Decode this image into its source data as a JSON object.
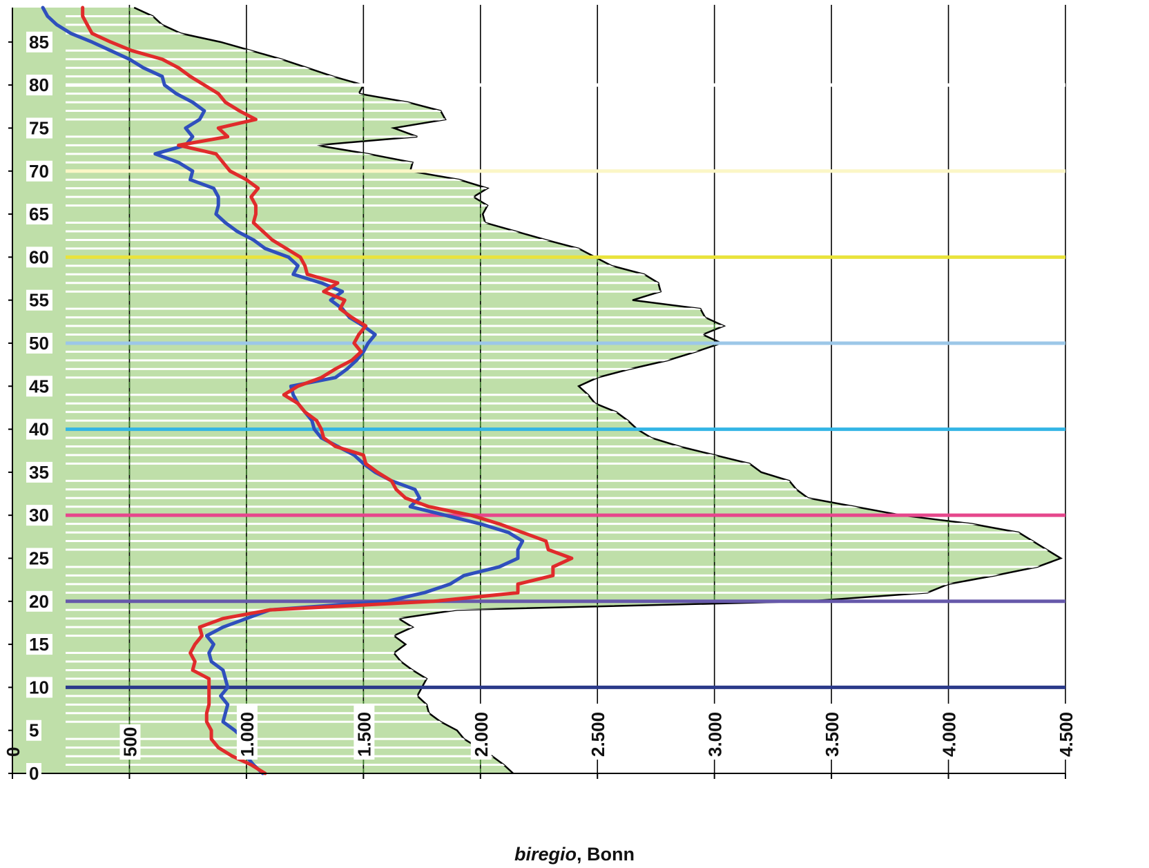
{
  "chart_data": {
    "type": "area",
    "title": "",
    "xlabel_italic": "biregio",
    "xlabel_rest": ", Bonn",
    "xlim": [
      0,
      4500
    ],
    "ylim": [
      0,
      89
    ],
    "x_ticks": [
      0,
      500,
      1000,
      1500,
      2000,
      2500,
      3000,
      3500,
      4000,
      4500
    ],
    "x_tick_labels": [
      "0",
      "500",
      "1.000",
      "1.500",
      "2.000",
      "2.500",
      "3.000",
      "3.500",
      "4.000",
      "4.500"
    ],
    "y_ticks": [
      0,
      5,
      10,
      15,
      20,
      25,
      30,
      35,
      40,
      45,
      50,
      55,
      60,
      65,
      70,
      75,
      80,
      85
    ],
    "y_tick_labels": [
      "0",
      "5",
      "10",
      "15",
      "20",
      "25",
      "30",
      "35",
      "40",
      "45",
      "50",
      "55",
      "60",
      "65",
      "70",
      "75",
      "80",
      "85"
    ],
    "grid": "vertical",
    "area_series": {
      "color": "#bfdfa9",
      "outline": "#000000",
      "points": [
        [
          2140,
          0
        ],
        [
          2100,
          1
        ],
        [
          2050,
          2
        ],
        [
          1990,
          3
        ],
        [
          1930,
          4
        ],
        [
          1900,
          5
        ],
        [
          1830,
          6
        ],
        [
          1780,
          7
        ],
        [
          1770,
          8
        ],
        [
          1730,
          9
        ],
        [
          1750,
          10
        ],
        [
          1770,
          11
        ],
        [
          1710,
          12
        ],
        [
          1660,
          13
        ],
        [
          1630,
          14
        ],
        [
          1680,
          15
        ],
        [
          1630,
          16
        ],
        [
          1710,
          17
        ],
        [
          1650,
          18
        ],
        [
          1900,
          19
        ],
        [
          3400,
          20
        ],
        [
          3910,
          21
        ],
        [
          4000,
          22
        ],
        [
          4200,
          23
        ],
        [
          4380,
          24
        ],
        [
          4480,
          25
        ],
        [
          4420,
          26
        ],
        [
          4360,
          27
        ],
        [
          4300,
          28
        ],
        [
          4100,
          29
        ],
        [
          3800,
          30
        ],
        [
          3600,
          31
        ],
        [
          3400,
          32
        ],
        [
          3350,
          33
        ],
        [
          3320,
          34
        ],
        [
          3200,
          35
        ],
        [
          3150,
          36
        ],
        [
          3000,
          37
        ],
        [
          2850,
          38
        ],
        [
          2730,
          39
        ],
        [
          2670,
          40
        ],
        [
          2630,
          41
        ],
        [
          2580,
          42
        ],
        [
          2490,
          43
        ],
        [
          2460,
          44
        ],
        [
          2420,
          45
        ],
        [
          2500,
          46
        ],
        [
          2640,
          47
        ],
        [
          2800,
          48
        ],
        [
          2920,
          49
        ],
        [
          3030,
          50
        ],
        [
          2950,
          51
        ],
        [
          3040,
          52
        ],
        [
          2960,
          53
        ],
        [
          2940,
          54
        ],
        [
          2650,
          55
        ],
        [
          2770,
          56
        ],
        [
          2760,
          57
        ],
        [
          2700,
          58
        ],
        [
          2560,
          59
        ],
        [
          2490,
          60
        ],
        [
          2420,
          61
        ],
        [
          2280,
          62
        ],
        [
          2150,
          63
        ],
        [
          2020,
          64
        ],
        [
          2010,
          65
        ],
        [
          2030,
          66
        ],
        [
          1970,
          67
        ],
        [
          2030,
          68
        ],
        [
          1910,
          69
        ],
        [
          1700,
          70
        ],
        [
          1710,
          71
        ],
        [
          1520,
          72
        ],
        [
          1300,
          73
        ],
        [
          1730,
          74
        ],
        [
          1630,
          75
        ],
        [
          1850,
          76
        ],
        [
          1830,
          77
        ],
        [
          1690,
          78
        ],
        [
          1480,
          79
        ],
        [
          1500,
          80
        ],
        [
          1370,
          81
        ],
        [
          1260,
          82
        ],
        [
          1150,
          83
        ],
        [
          1020,
          84
        ],
        [
          890,
          85
        ],
        [
          720,
          86
        ],
        [
          640,
          87
        ],
        [
          600,
          88
        ],
        [
          520,
          89
        ]
      ]
    },
    "series": [
      {
        "color": "#2f4fbd",
        "points": [
          [
            1070,
            0
          ],
          [
            1030,
            1
          ],
          [
            1000,
            2
          ],
          [
            990,
            3
          ],
          [
            990,
            4
          ],
          [
            950,
            5
          ],
          [
            900,
            6
          ],
          [
            910,
            7
          ],
          [
            920,
            8
          ],
          [
            890,
            9
          ],
          [
            920,
            10
          ],
          [
            910,
            11
          ],
          [
            900,
            12
          ],
          [
            850,
            13
          ],
          [
            840,
            14
          ],
          [
            860,
            15
          ],
          [
            830,
            16
          ],
          [
            900,
            17
          ],
          [
            1000,
            18
          ],
          [
            1100,
            19
          ],
          [
            1600,
            20
          ],
          [
            1760,
            21
          ],
          [
            1870,
            22
          ],
          [
            1930,
            23
          ],
          [
            2080,
            24
          ],
          [
            2160,
            25
          ],
          [
            2160,
            26
          ],
          [
            2180,
            27
          ],
          [
            2120,
            28
          ],
          [
            2000,
            29
          ],
          [
            1850,
            30
          ],
          [
            1700,
            31
          ],
          [
            1740,
            32
          ],
          [
            1720,
            33
          ],
          [
            1620,
            34
          ],
          [
            1550,
            35
          ],
          [
            1500,
            36
          ],
          [
            1460,
            37
          ],
          [
            1390,
            38
          ],
          [
            1320,
            39
          ],
          [
            1290,
            40
          ],
          [
            1280,
            41
          ],
          [
            1250,
            42
          ],
          [
            1220,
            43
          ],
          [
            1200,
            44
          ],
          [
            1190,
            45
          ],
          [
            1380,
            46
          ],
          [
            1430,
            47
          ],
          [
            1470,
            48
          ],
          [
            1500,
            49
          ],
          [
            1520,
            50
          ],
          [
            1550,
            51
          ],
          [
            1500,
            52
          ],
          [
            1440,
            53
          ],
          [
            1410,
            54
          ],
          [
            1360,
            55
          ],
          [
            1410,
            56
          ],
          [
            1320,
            57
          ],
          [
            1200,
            58
          ],
          [
            1220,
            59
          ],
          [
            1180,
            60
          ],
          [
            1080,
            61
          ],
          [
            1030,
            62
          ],
          [
            960,
            63
          ],
          [
            910,
            64
          ],
          [
            870,
            65
          ],
          [
            880,
            66
          ],
          [
            880,
            67
          ],
          [
            860,
            68
          ],
          [
            760,
            69
          ],
          [
            770,
            70
          ],
          [
            710,
            71
          ],
          [
            610,
            72
          ],
          [
            740,
            73
          ],
          [
            770,
            74
          ],
          [
            740,
            75
          ],
          [
            800,
            76
          ],
          [
            820,
            77
          ],
          [
            770,
            78
          ],
          [
            700,
            79
          ],
          [
            650,
            80
          ],
          [
            640,
            81
          ],
          [
            560,
            82
          ],
          [
            500,
            83
          ],
          [
            420,
            84
          ],
          [
            340,
            85
          ],
          [
            250,
            86
          ],
          [
            190,
            87
          ],
          [
            150,
            88
          ],
          [
            130,
            89
          ]
        ]
      },
      {
        "color": "#e02b2b",
        "points": [
          [
            1080,
            0
          ],
          [
            1020,
            1
          ],
          [
            940,
            2
          ],
          [
            880,
            3
          ],
          [
            850,
            4
          ],
          [
            850,
            5
          ],
          [
            830,
            6
          ],
          [
            830,
            7
          ],
          [
            840,
            8
          ],
          [
            840,
            9
          ],
          [
            840,
            10
          ],
          [
            840,
            11
          ],
          [
            770,
            12
          ],
          [
            780,
            13
          ],
          [
            760,
            14
          ],
          [
            780,
            15
          ],
          [
            810,
            16
          ],
          [
            800,
            17
          ],
          [
            900,
            18
          ],
          [
            1100,
            19
          ],
          [
            1800,
            20
          ],
          [
            2160,
            21
          ],
          [
            2160,
            22
          ],
          [
            2310,
            23
          ],
          [
            2310,
            24
          ],
          [
            2390,
            25
          ],
          [
            2290,
            26
          ],
          [
            2280,
            27
          ],
          [
            2180,
            28
          ],
          [
            2080,
            29
          ],
          [
            1960,
            30
          ],
          [
            1780,
            31
          ],
          [
            1680,
            32
          ],
          [
            1640,
            33
          ],
          [
            1620,
            34
          ],
          [
            1560,
            35
          ],
          [
            1510,
            36
          ],
          [
            1500,
            37
          ],
          [
            1380,
            38
          ],
          [
            1330,
            39
          ],
          [
            1320,
            40
          ],
          [
            1300,
            41
          ],
          [
            1250,
            42
          ],
          [
            1220,
            43
          ],
          [
            1160,
            44
          ],
          [
            1220,
            45
          ],
          [
            1320,
            46
          ],
          [
            1380,
            47
          ],
          [
            1450,
            48
          ],
          [
            1490,
            49
          ],
          [
            1460,
            50
          ],
          [
            1480,
            51
          ],
          [
            1510,
            52
          ],
          [
            1450,
            53
          ],
          [
            1400,
            54
          ],
          [
            1420,
            55
          ],
          [
            1330,
            56
          ],
          [
            1390,
            57
          ],
          [
            1260,
            58
          ],
          [
            1250,
            59
          ],
          [
            1230,
            60
          ],
          [
            1170,
            61
          ],
          [
            1110,
            62
          ],
          [
            1070,
            63
          ],
          [
            1030,
            64
          ],
          [
            1040,
            65
          ],
          [
            1040,
            66
          ],
          [
            1020,
            67
          ],
          [
            1050,
            68
          ],
          [
            1000,
            69
          ],
          [
            930,
            70
          ],
          [
            900,
            71
          ],
          [
            870,
            72
          ],
          [
            710,
            73
          ],
          [
            920,
            74
          ],
          [
            880,
            75
          ],
          [
            1040,
            76
          ],
          [
            970,
            77
          ],
          [
            910,
            78
          ],
          [
            880,
            79
          ],
          [
            820,
            80
          ],
          [
            760,
            81
          ],
          [
            710,
            82
          ],
          [
            640,
            83
          ],
          [
            510,
            84
          ],
          [
            420,
            85
          ],
          [
            340,
            86
          ],
          [
            320,
            87
          ],
          [
            300,
            88
          ],
          [
            300,
            89
          ]
        ]
      }
    ],
    "hlines": [
      {
        "y": 10,
        "color": "#2b3a8a"
      },
      {
        "y": 20,
        "color": "#6659aa"
      },
      {
        "y": 30,
        "color": "#e6478c"
      },
      {
        "y": 40,
        "color": "#33b5e5"
      },
      {
        "y": 50,
        "color": "#9cc7e8"
      },
      {
        "y": 60,
        "color": "#e9e33c"
      },
      {
        "y": 70,
        "color": "#fbf6c6"
      },
      {
        "y": 80,
        "color": "#ffffff"
      }
    ]
  }
}
